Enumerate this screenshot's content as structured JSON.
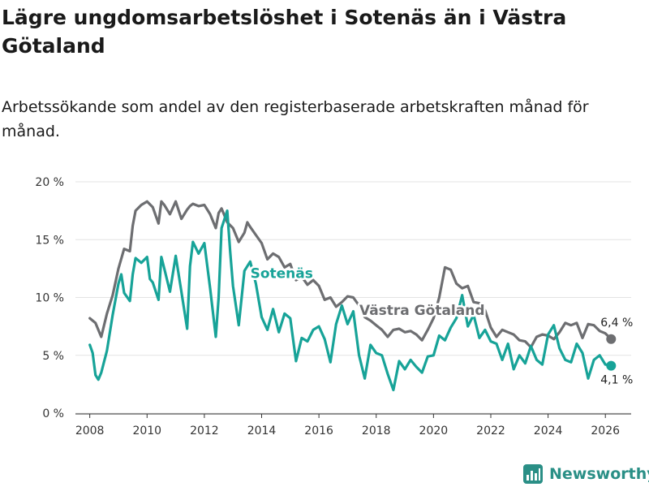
{
  "header": {
    "title": "Lägre ungdomsarbetslöshet i Sotenäs än i Västra Götaland",
    "subtitle": "Arbetssökande som andel av den registerbaserade arbetskraften månad för månad."
  },
  "brand": {
    "name": "Newsworthy",
    "icon": "bar-chart-icon",
    "color": "#2a8f86"
  },
  "chart_data": {
    "type": "line",
    "title": "Lägre ungdomsarbetslöshet i Sotenäs än i Västra Götaland",
    "subtitle": "Arbetssökande som andel av den registerbaserade arbetskraften månad för månad.",
    "xlabel": "",
    "ylabel": "",
    "xlim": [
      2007.5,
      2026.9
    ],
    "ylim": [
      0,
      20
    ],
    "grid": true,
    "x_ticks": [
      2008,
      2010,
      2012,
      2014,
      2016,
      2018,
      2020,
      2022,
      2024,
      2026
    ],
    "x_tick_labels": [
      "2008",
      "2010",
      "2012",
      "2014",
      "2016",
      "2018",
      "2020",
      "2022",
      "2024",
      "2026"
    ],
    "y_ticks": [
      0,
      5,
      10,
      15,
      20
    ],
    "y_tick_labels": [
      "0 %",
      "5 %",
      "10 %",
      "15 %",
      "20 %"
    ],
    "series": [
      {
        "name": "Västra Götaland",
        "color": "#6d6e71",
        "end_label": "6,4 %",
        "x": [
          2008.0,
          2008.2,
          2008.4,
          2008.6,
          2008.8,
          2009.0,
          2009.2,
          2009.4,
          2009.5,
          2009.6,
          2009.8,
          2010.0,
          2010.2,
          2010.4,
          2010.5,
          2010.6,
          2010.8,
          2011.0,
          2011.2,
          2011.4,
          2011.5,
          2011.6,
          2011.8,
          2012.0,
          2012.2,
          2012.4,
          2012.5,
          2012.6,
          2012.8,
          2013.0,
          2013.2,
          2013.4,
          2013.5,
          2013.6,
          2013.8,
          2014.0,
          2014.2,
          2014.4,
          2014.6,
          2014.8,
          2015.0,
          2015.2,
          2015.4,
          2015.6,
          2015.8,
          2016.0,
          2016.2,
          2016.4,
          2016.6,
          2016.8,
          2017.0,
          2017.2,
          2017.4,
          2017.6,
          2017.8,
          2018.0,
          2018.2,
          2018.4,
          2018.6,
          2018.8,
          2019.0,
          2019.2,
          2019.4,
          2019.6,
          2019.8,
          2020.0,
          2020.2,
          2020.4,
          2020.6,
          2020.8,
          2021.0,
          2021.2,
          2021.4,
          2021.6,
          2021.8,
          2022.0,
          2022.2,
          2022.4,
          2022.6,
          2022.8,
          2023.0,
          2023.2,
          2023.4,
          2023.6,
          2023.8,
          2024.0,
          2024.2,
          2024.4,
          2024.6,
          2024.8,
          2025.0,
          2025.2,
          2025.4,
          2025.6,
          2025.8,
          2026.0,
          2026.2
        ],
        "values": [
          8.2,
          7.8,
          6.6,
          8.6,
          10.2,
          12.5,
          14.2,
          14.0,
          16.2,
          17.5,
          18.0,
          18.3,
          17.8,
          16.4,
          18.3,
          18.0,
          17.2,
          18.3,
          16.8,
          17.6,
          17.9,
          18.1,
          17.9,
          18.0,
          17.2,
          16.0,
          17.3,
          17.7,
          16.5,
          16.0,
          14.8,
          15.6,
          16.5,
          16.1,
          15.4,
          14.7,
          13.3,
          13.8,
          13.5,
          12.6,
          12.9,
          11.5,
          11.8,
          11.1,
          11.5,
          11.0,
          9.8,
          10.0,
          9.2,
          9.6,
          10.1,
          10.0,
          9.3,
          8.3,
          8.0,
          7.6,
          7.2,
          6.6,
          7.2,
          7.3,
          7.0,
          7.1,
          6.8,
          6.3,
          7.2,
          8.2,
          10.0,
          12.6,
          12.4,
          11.2,
          10.8,
          11.0,
          9.6,
          9.5,
          8.9,
          7.4,
          6.6,
          7.2,
          7.0,
          6.8,
          6.3,
          6.2,
          5.7,
          6.6,
          6.8,
          6.7,
          6.4,
          7.0,
          7.8,
          7.6,
          7.8,
          6.5,
          7.7,
          7.6,
          7.1,
          6.9,
          6.4
        ]
      },
      {
        "name": "Sotenäs",
        "color": "#17a398",
        "end_label": "4,1 %",
        "x": [
          2008.0,
          2008.1,
          2008.2,
          2008.3,
          2008.4,
          2008.6,
          2008.8,
          2009.0,
          2009.1,
          2009.2,
          2009.4,
          2009.5,
          2009.6,
          2009.8,
          2010.0,
          2010.1,
          2010.2,
          2010.4,
          2010.5,
          2010.6,
          2010.8,
          2011.0,
          2011.2,
          2011.4,
          2011.5,
          2011.6,
          2011.8,
          2012.0,
          2012.2,
          2012.4,
          2012.5,
          2012.6,
          2012.8,
          2012.9,
          2013.0,
          2013.2,
          2013.4,
          2013.6,
          2013.8,
          2014.0,
          2014.2,
          2014.4,
          2014.6,
          2014.8,
          2015.0,
          2015.2,
          2015.4,
          2015.6,
          2015.8,
          2016.0,
          2016.2,
          2016.4,
          2016.6,
          2016.8,
          2017.0,
          2017.2,
          2017.4,
          2017.6,
          2017.8,
          2018.0,
          2018.2,
          2018.4,
          2018.6,
          2018.8,
          2019.0,
          2019.2,
          2019.4,
          2019.6,
          2019.8,
          2020.0,
          2020.2,
          2020.4,
          2020.6,
          2020.8,
          2021.0,
          2021.2,
          2021.4,
          2021.6,
          2021.8,
          2022.0,
          2022.2,
          2022.4,
          2022.6,
          2022.8,
          2023.0,
          2023.2,
          2023.4,
          2023.6,
          2023.8,
          2024.0,
          2024.2,
          2024.4,
          2024.6,
          2024.8,
          2025.0,
          2025.2,
          2025.4,
          2025.6,
          2025.8,
          2026.0,
          2026.2
        ],
        "values": [
          5.9,
          5.2,
          3.3,
          2.9,
          3.5,
          5.4,
          8.5,
          11.2,
          12.0,
          10.4,
          9.7,
          12.0,
          13.4,
          13.0,
          13.5,
          11.6,
          11.3,
          9.8,
          13.5,
          12.5,
          10.5,
          13.6,
          10.5,
          7.3,
          12.7,
          14.8,
          13.8,
          14.7,
          10.8,
          6.6,
          10.0,
          16.0,
          17.5,
          14.0,
          11.0,
          7.6,
          12.3,
          13.1,
          11.2,
          8.3,
          7.2,
          9.0,
          7.0,
          8.6,
          8.2,
          4.5,
          6.5,
          6.2,
          7.2,
          7.5,
          6.4,
          4.4,
          7.7,
          9.3,
          7.7,
          8.8,
          5.0,
          3.0,
          5.9,
          5.2,
          5.0,
          3.4,
          2.0,
          4.5,
          3.8,
          4.6,
          4.0,
          3.5,
          4.9,
          5.0,
          6.7,
          6.3,
          7.4,
          8.2,
          10.2,
          7.5,
          8.5,
          6.5,
          7.2,
          6.2,
          6.0,
          4.6,
          6.0,
          3.8,
          5.0,
          4.3,
          5.8,
          4.6,
          4.2,
          6.8,
          7.6,
          5.6,
          4.6,
          4.4,
          6.0,
          5.2,
          3.0,
          4.6,
          5.0,
          4.2,
          4.1
        ]
      }
    ],
    "annotations": [
      {
        "text": "Sotenäs",
        "series": "Sotenäs",
        "x": 2014.7,
        "y": 11.7
      },
      {
        "text": "Västra Götaland",
        "series": "Västra Götaland",
        "x": 2019.6,
        "y": 8.5
      }
    ]
  }
}
